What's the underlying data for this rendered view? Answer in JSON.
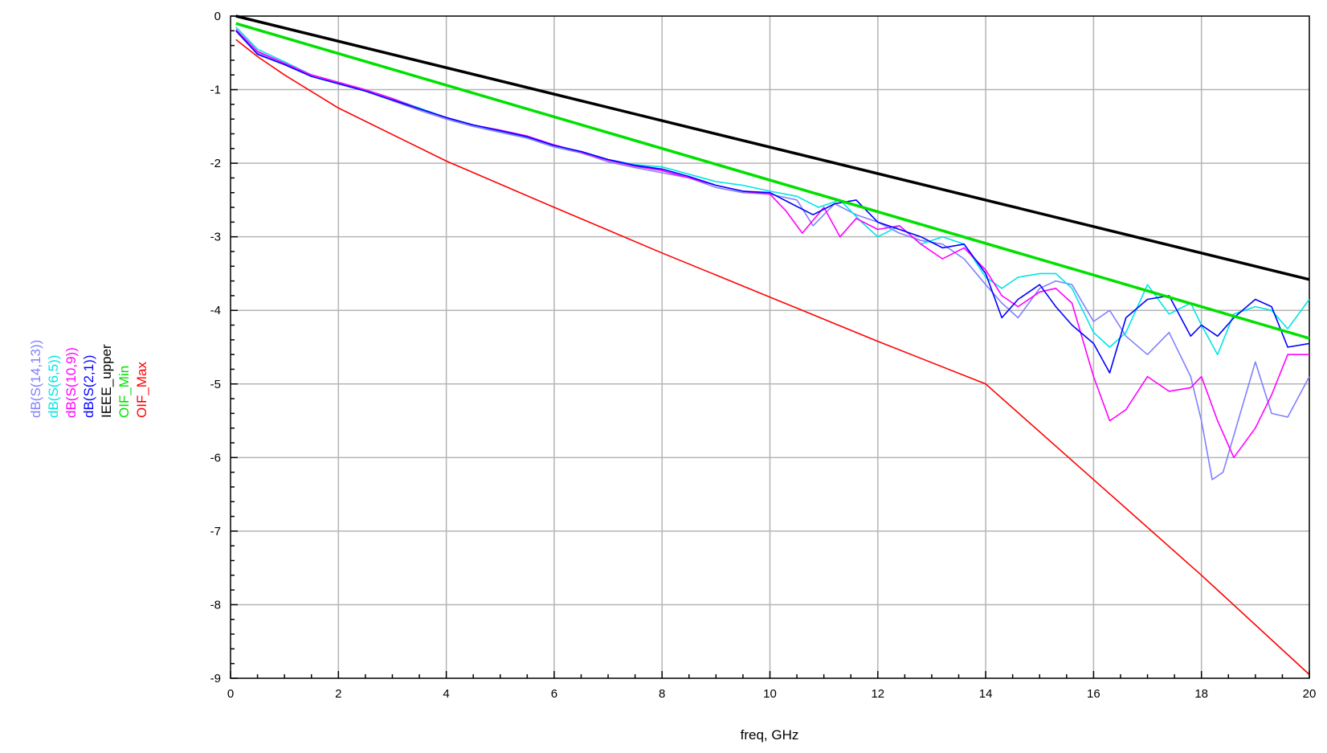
{
  "chart_data": {
    "type": "line",
    "xlabel": "freq, GHz",
    "ylabel": "",
    "xlim": [
      0,
      20
    ],
    "ylim": [
      -9,
      0
    ],
    "xticks": [
      0,
      2,
      4,
      6,
      8,
      10,
      12,
      14,
      16,
      18,
      20
    ],
    "xtick_labels": [
      "0",
      "2",
      "4",
      "6",
      "8",
      "10",
      "12",
      "14",
      "16",
      "18",
      "20"
    ],
    "yticks": [
      0,
      -1,
      -2,
      -3,
      -4,
      -5,
      -6,
      -7,
      -8,
      -9
    ],
    "ytick_labels": [
      "0",
      "-1",
      "-2",
      "-3",
      "-4",
      "-5",
      "-6",
      "-7",
      "-8",
      "-9"
    ],
    "grid": true,
    "legend_position": "left, rotated vertical",
    "series": [
      {
        "name": "dB(S(14,13))",
        "color": "#8080ff",
        "x": [
          0.1,
          0.5,
          1.0,
          1.5,
          2.0,
          2.5,
          3.0,
          3.5,
          4.0,
          4.5,
          5.0,
          5.5,
          6.0,
          6.5,
          7.0,
          7.5,
          8.0,
          8.5,
          9.0,
          9.5,
          10.0,
          10.5,
          10.8,
          11.2,
          11.6,
          12.0,
          12.4,
          12.8,
          13.2,
          13.6,
          14.0,
          14.3,
          14.6,
          15.0,
          15.3,
          15.6,
          16.0,
          16.3,
          16.6,
          17.0,
          17.4,
          17.8,
          18.0,
          18.2,
          18.4,
          18.6,
          19.0,
          19.3,
          19.6,
          20.0
        ],
        "y": [
          -0.2,
          -0.5,
          -0.65,
          -0.8,
          -0.9,
          -1.02,
          -1.15,
          -1.28,
          -1.4,
          -1.5,
          -1.58,
          -1.66,
          -1.78,
          -1.86,
          -1.98,
          -2.06,
          -2.13,
          -2.2,
          -2.33,
          -2.4,
          -2.42,
          -2.5,
          -2.85,
          -2.55,
          -2.7,
          -2.8,
          -2.95,
          -3.05,
          -3.1,
          -3.3,
          -3.65,
          -3.9,
          -4.1,
          -3.7,
          -3.6,
          -3.65,
          -4.15,
          -4.0,
          -4.35,
          -4.6,
          -4.3,
          -4.9,
          -5.5,
          -6.3,
          -6.2,
          -5.7,
          -4.7,
          -5.4,
          -5.45,
          -4.9
        ]
      },
      {
        "name": "dB(S(6,5))",
        "color": "#00e5e5",
        "x": [
          0.1,
          0.5,
          1.0,
          1.5,
          2.0,
          2.5,
          3.0,
          3.5,
          4.0,
          4.5,
          5.0,
          5.5,
          6.0,
          6.5,
          7.0,
          7.5,
          8.0,
          8.5,
          9.0,
          9.5,
          10.0,
          10.5,
          10.9,
          11.3,
          11.7,
          12.0,
          12.4,
          12.8,
          13.2,
          13.6,
          14.0,
          14.3,
          14.6,
          15.0,
          15.3,
          15.6,
          16.0,
          16.3,
          16.6,
          17.0,
          17.4,
          17.8,
          18.0,
          18.3,
          18.6,
          19.0,
          19.3,
          19.6,
          20.0
        ],
        "y": [
          -0.15,
          -0.45,
          -0.62,
          -0.8,
          -0.9,
          -1.0,
          -1.12,
          -1.25,
          -1.38,
          -1.48,
          -1.56,
          -1.64,
          -1.76,
          -1.84,
          -1.95,
          -2.02,
          -2.05,
          -2.15,
          -2.25,
          -2.3,
          -2.38,
          -2.45,
          -2.6,
          -2.5,
          -2.8,
          -3.0,
          -2.85,
          -3.1,
          -3.0,
          -3.1,
          -3.55,
          -3.7,
          -3.55,
          -3.5,
          -3.5,
          -3.7,
          -4.3,
          -4.5,
          -4.3,
          -3.65,
          -4.05,
          -3.9,
          -4.2,
          -4.6,
          -4.05,
          -3.95,
          -4.0,
          -4.25,
          -3.85
        ]
      },
      {
        "name": "dB(S(10,9))",
        "color": "#ff00ff",
        "x": [
          0.1,
          0.5,
          1.0,
          1.5,
          2.0,
          2.5,
          3.0,
          3.5,
          4.0,
          4.5,
          5.0,
          5.5,
          6.0,
          6.5,
          7.0,
          7.5,
          8.0,
          8.5,
          9.0,
          9.5,
          10.0,
          10.3,
          10.6,
          11.0,
          11.3,
          11.6,
          12.0,
          12.4,
          12.8,
          13.2,
          13.6,
          14.0,
          14.3,
          14.6,
          15.0,
          15.3,
          15.6,
          16.0,
          16.3,
          16.6,
          17.0,
          17.4,
          17.8,
          18.0,
          18.3,
          18.6,
          19.0,
          19.3,
          19.6,
          20.0
        ],
        "y": [
          -0.18,
          -0.48,
          -0.64,
          -0.8,
          -0.9,
          -1.0,
          -1.12,
          -1.26,
          -1.38,
          -1.48,
          -1.55,
          -1.63,
          -1.75,
          -1.85,
          -1.96,
          -2.04,
          -2.1,
          -2.2,
          -2.3,
          -2.38,
          -2.42,
          -2.65,
          -2.95,
          -2.6,
          -3.0,
          -2.75,
          -2.9,
          -2.85,
          -3.1,
          -3.3,
          -3.15,
          -3.45,
          -3.8,
          -3.95,
          -3.75,
          -3.7,
          -3.9,
          -4.9,
          -5.5,
          -5.35,
          -4.9,
          -5.1,
          -5.05,
          -4.9,
          -5.5,
          -6.0,
          -5.6,
          -5.15,
          -4.6,
          -4.6
        ]
      },
      {
        "name": "dB(S(2,1))",
        "color": "#0000ff",
        "x": [
          0.1,
          0.5,
          1.0,
          1.5,
          2.0,
          2.5,
          3.0,
          3.5,
          4.0,
          4.5,
          5.0,
          5.5,
          6.0,
          6.5,
          7.0,
          7.5,
          8.0,
          8.5,
          9.0,
          9.5,
          10.0,
          10.4,
          10.8,
          11.2,
          11.6,
          12.0,
          12.4,
          12.8,
          13.2,
          13.6,
          14.0,
          14.3,
          14.6,
          15.0,
          15.3,
          15.6,
          16.0,
          16.3,
          16.6,
          17.0,
          17.4,
          17.8,
          18.0,
          18.3,
          18.6,
          19.0,
          19.3,
          19.6,
          20.0
        ],
        "y": [
          -0.2,
          -0.52,
          -0.66,
          -0.82,
          -0.92,
          -1.02,
          -1.14,
          -1.26,
          -1.38,
          -1.48,
          -1.56,
          -1.64,
          -1.76,
          -1.84,
          -1.95,
          -2.03,
          -2.08,
          -2.18,
          -2.3,
          -2.38,
          -2.4,
          -2.55,
          -2.7,
          -2.55,
          -2.5,
          -2.8,
          -2.9,
          -3.0,
          -3.15,
          -3.1,
          -3.5,
          -4.1,
          -3.85,
          -3.65,
          -3.95,
          -4.2,
          -4.45,
          -4.85,
          -4.1,
          -3.85,
          -3.8,
          -4.35,
          -4.2,
          -4.35,
          -4.1,
          -3.85,
          -3.95,
          -4.5,
          -4.45
        ]
      },
      {
        "name": "IEEE_upper",
        "color": "#000000",
        "x": [
          0.1,
          20
        ],
        "y": [
          0.0,
          -3.58
        ]
      },
      {
        "name": "OIF_Min",
        "color": "#00e000",
        "x": [
          0.1,
          20
        ],
        "y": [
          -0.1,
          -4.38
        ]
      },
      {
        "name": "OIF_Max",
        "color": "#ff0000",
        "x": [
          0.1,
          0.5,
          1.0,
          2.0,
          4.0,
          6.0,
          8.0,
          10.0,
          12.0,
          14.0,
          16.0,
          18.0,
          20.0
        ],
        "y": [
          -0.32,
          -0.55,
          -0.8,
          -1.25,
          -1.97,
          -2.6,
          -3.22,
          -3.82,
          -4.42,
          -5.0,
          -6.3,
          -7.6,
          -8.95
        ]
      }
    ]
  }
}
